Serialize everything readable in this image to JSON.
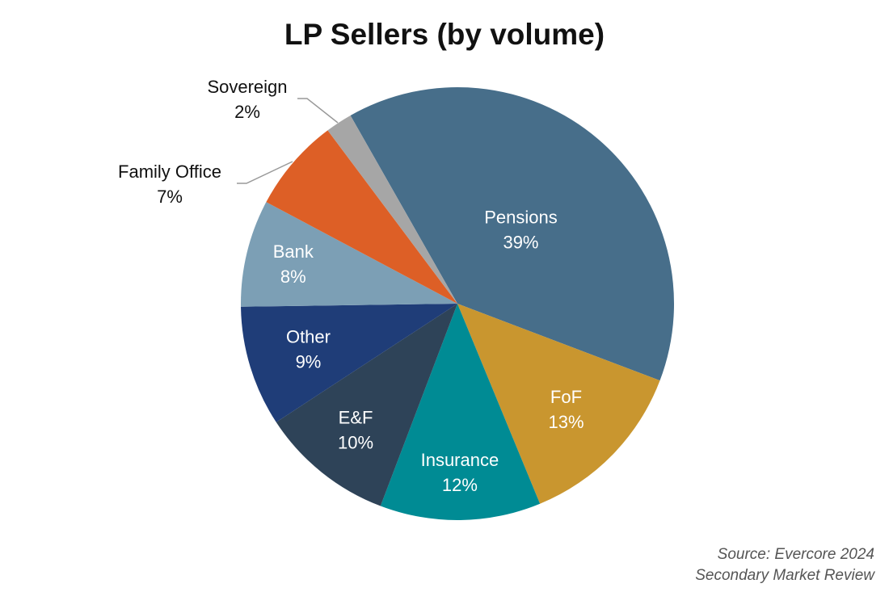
{
  "chart_data": {
    "type": "pie",
    "title": "LP Sellers (by volume)",
    "slices": [
      {
        "label": "Pensions",
        "value": 39,
        "display": "39%",
        "color": "#476e8a",
        "text_color": "#ffffff"
      },
      {
        "label": "FoF",
        "value": 13,
        "display": "13%",
        "color": "#c9962f",
        "text_color": "#ffffff"
      },
      {
        "label": "Insurance",
        "value": 12,
        "display": "12%",
        "color": "#008b94",
        "text_color": "#ffffff"
      },
      {
        "label": "E&F",
        "value": 10,
        "display": "10%",
        "color": "#2e4358",
        "text_color": "#ffffff"
      },
      {
        "label": "Other",
        "value": 9,
        "display": "9%",
        "color": "#1f3d78",
        "text_color": "#ffffff"
      },
      {
        "label": "Bank",
        "value": 8,
        "display": "8%",
        "color": "#7c9fb5",
        "text_color": "#ffffff"
      },
      {
        "label": "Family Office",
        "value": 7,
        "display": "7%",
        "color": "#dd5f26",
        "text_color": "#111111"
      },
      {
        "label": "Sovereign",
        "value": 2,
        "display": "2%",
        "color": "#a6a6a6",
        "text_color": "#111111"
      }
    ],
    "legend": "none"
  },
  "source": {
    "line1": "Source: Evercore 2024",
    "line2": "Secondary Market Review"
  }
}
